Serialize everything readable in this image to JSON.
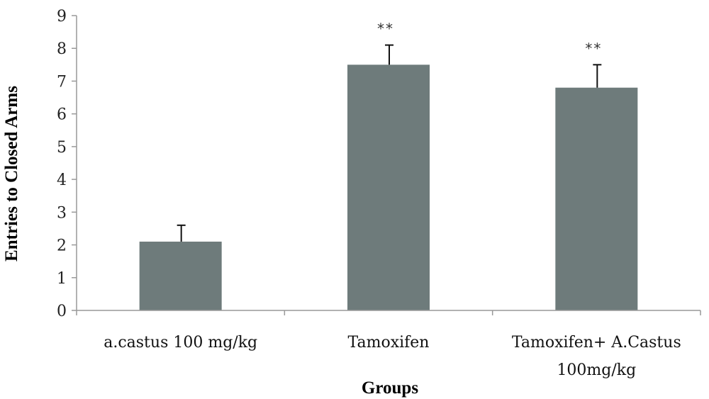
{
  "chart_data": {
    "type": "bar",
    "categories": [
      [
        "a.castus 100 mg/kg"
      ],
      [
        "Tamoxifen"
      ],
      [
        "Tamoxifen+ A.Castus",
        "100mg/kg"
      ]
    ],
    "values": [
      2.1,
      7.5,
      6.8
    ],
    "error_bars": [
      0.5,
      0.6,
      0.7
    ],
    "annotations": [
      "",
      "**",
      "**"
    ],
    "xlabel": "Groups",
    "ylabel": "Entries to Closed Arms",
    "ylim": [
      0,
      9
    ],
    "yticks": [
      "0",
      "1",
      "2",
      "3",
      "4",
      "5",
      "6",
      "7",
      "8",
      "9"
    ],
    "grid": false,
    "legend": "none"
  },
  "colors": {
    "bar": "#6e7b7b",
    "axis": "#999999",
    "error_bar": "#111111"
  }
}
